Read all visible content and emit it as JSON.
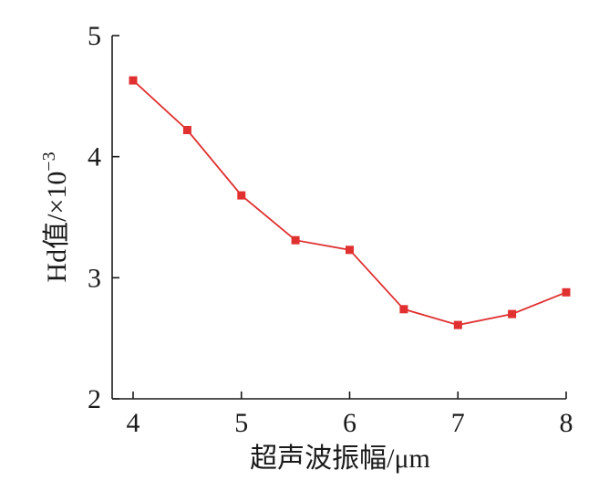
{
  "chart_data": {
    "type": "line",
    "title": "",
    "xlabel": "超声波振幅/μm",
    "ylabel": {
      "base": "Hd值/×10",
      "exponent": "−3"
    },
    "xlim": [
      4,
      8
    ],
    "ylim": [
      2,
      5
    ],
    "x_ticks": [
      4,
      5,
      6,
      7,
      8
    ],
    "y_ticks": [
      2,
      3,
      4,
      5
    ],
    "x_tick_labels": [
      "4",
      "5",
      "6",
      "7",
      "8"
    ],
    "y_tick_labels": [
      "2",
      "3",
      "4",
      "5"
    ],
    "grid": false,
    "legend": "none",
    "series": [
      {
        "color": "#e03030",
        "marker": "square",
        "x": [
          4,
          4.5,
          5,
          5.5,
          6,
          6.5,
          7,
          7.5,
          8
        ],
        "y": [
          4.63,
          4.22,
          3.68,
          3.31,
          3.23,
          2.74,
          2.61,
          2.7,
          2.88
        ]
      }
    ]
  }
}
